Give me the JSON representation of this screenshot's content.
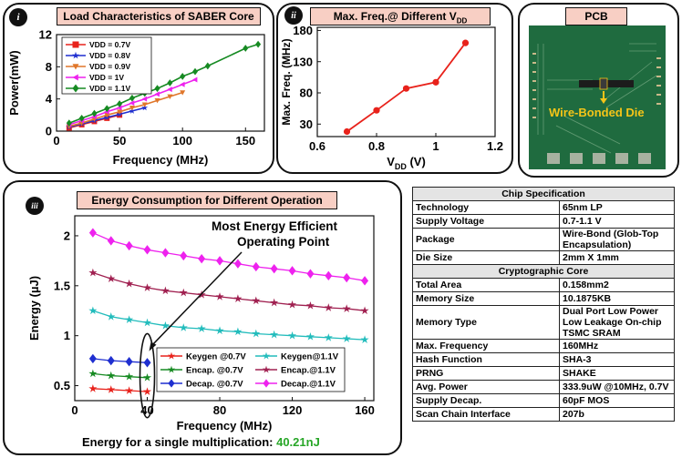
{
  "panel_i": {
    "badge": "i",
    "title": "Load Characteristics of SABER Core"
  },
  "panel_ii": {
    "badge": "ii",
    "title_main": "Max. Freq.@ Different V",
    "title_sub": "DD"
  },
  "panel_pcb": {
    "title": "PCB",
    "label": "Wire-Bonded Die"
  },
  "panel_iii": {
    "badge": "iii",
    "title": "Energy Consumption for Different Operation",
    "annotation_line1": "Most Energy Efficient",
    "annotation_line2": "Operating Point",
    "footer_label": "Energy for a single multiplication: ",
    "footer_value": "40.21nJ"
  },
  "colors": {
    "accent_green": "#27a627",
    "title_bg": "#f8cfc4",
    "pcb_green": "#1f6b3f",
    "label_yellow": "#f5c518"
  },
  "chart_data": [
    {
      "id": "load",
      "type": "line",
      "title": "Load Characteristics of SABER Core",
      "xlabel": "Frequency (MHz)",
      "ylabel": "Power(mW)",
      "xlim": [
        0,
        165
      ],
      "ylim": [
        0,
        12
      ],
      "xticks": [
        0,
        50,
        100,
        150
      ],
      "yticks": [
        0,
        4,
        8,
        12
      ],
      "legend_position": "top-left",
      "series": [
        {
          "name": "VDD = 0.7V",
          "color": "#e8221b",
          "marker": "square",
          "x": [
            10,
            20,
            30,
            40,
            50
          ],
          "y": [
            0.4,
            0.8,
            1.2,
            1.6,
            2.0
          ]
        },
        {
          "name": "VDD = 0.8V",
          "color": "#1f2fd0",
          "marker": "star",
          "x": [
            10,
            20,
            30,
            40,
            50,
            60,
            70
          ],
          "y": [
            0.5,
            0.9,
            1.3,
            1.7,
            2.1,
            2.5,
            2.9
          ]
        },
        {
          "name": "VDD = 0.9V",
          "color": "#e0762a",
          "marker": "triangle-down",
          "x": [
            10,
            20,
            30,
            40,
            50,
            60,
            70,
            80,
            90,
            100
          ],
          "y": [
            0.6,
            1.0,
            1.5,
            2.0,
            2.4,
            2.9,
            3.3,
            3.8,
            4.3,
            4.8
          ]
        },
        {
          "name": "VDD = 1V",
          "color": "#ee22ee",
          "marker": "triangle-left",
          "x": [
            10,
            20,
            30,
            40,
            50,
            60,
            70,
            80,
            90,
            100,
            110
          ],
          "y": [
            0.8,
            1.3,
            1.8,
            2.4,
            2.9,
            3.5,
            4.0,
            4.6,
            5.2,
            5.8,
            6.4
          ]
        },
        {
          "name": "VDD = 1.1V",
          "color": "#168a22",
          "marker": "diamond",
          "x": [
            10,
            20,
            30,
            40,
            50,
            60,
            70,
            80,
            90,
            100,
            110,
            120,
            150,
            160
          ],
          "y": [
            1.0,
            1.6,
            2.2,
            2.8,
            3.4,
            4.1,
            4.7,
            5.3,
            6.0,
            6.8,
            7.4,
            8.1,
            10.3,
            10.8
          ]
        }
      ]
    },
    {
      "id": "maxfreq",
      "type": "line",
      "title": "Max. Freq.@ Different VDD",
      "xlabel_main": "V",
      "xlabel_sub": "DD",
      "xlabel_unit": " (V)",
      "ylabel": "Max. Freq. (MHz)",
      "xlim": [
        0.6,
        1.2
      ],
      "ylim": [
        10,
        185
      ],
      "xticks": [
        0.6,
        0.8,
        1.0,
        1.2
      ],
      "xtick_labels": [
        "0.6",
        "0.8",
        "1",
        "1.2"
      ],
      "yticks": [
        30,
        80,
        130,
        180
      ],
      "series": [
        {
          "name": "Max. Freq.",
          "color": "#e8221b",
          "marker": "circle",
          "x": [
            0.7,
            0.8,
            0.9,
            1.0,
            1.1
          ],
          "y": [
            18,
            52,
            87,
            97,
            160
          ]
        }
      ]
    },
    {
      "id": "energy",
      "type": "line",
      "title": "Energy Consumption for Different Operation",
      "xlabel": "Frequency (MHz)",
      "ylabel": "Energy (µJ)",
      "xlim": [
        0,
        165
      ],
      "ylim": [
        0.35,
        2.2
      ],
      "xticks": [
        0,
        40,
        80,
        120,
        160
      ],
      "yticks": [
        0.5,
        1,
        1.5,
        2
      ],
      "ytick_labels": [
        "0.5",
        "1",
        "1.5",
        "2"
      ],
      "legend_position": "bottom-right",
      "series": [
        {
          "name": "Keygen @0.7V",
          "color": "#e8221b",
          "marker": "star",
          "x": [
            10,
            20,
            30,
            40
          ],
          "y": [
            0.47,
            0.46,
            0.45,
            0.44
          ]
        },
        {
          "name": "Encap. @0.7V",
          "color": "#168a22",
          "marker": "star",
          "x": [
            10,
            20,
            30,
            40
          ],
          "y": [
            0.62,
            0.6,
            0.59,
            0.58
          ]
        },
        {
          "name": "Decap. @0.7V",
          "color": "#1f2fd0",
          "marker": "diamond",
          "x": [
            10,
            20,
            30,
            40
          ],
          "y": [
            0.77,
            0.75,
            0.74,
            0.73
          ]
        },
        {
          "name": "Keygen@1.1V",
          "color": "#22bcbc",
          "marker": "star",
          "x": [
            10,
            20,
            30,
            40,
            50,
            60,
            70,
            80,
            90,
            100,
            110,
            120,
            130,
            140,
            150,
            160
          ],
          "y": [
            1.25,
            1.19,
            1.16,
            1.13,
            1.1,
            1.08,
            1.07,
            1.05,
            1.04,
            1.02,
            1.01,
            1.0,
            0.99,
            0.98,
            0.97,
            0.96
          ]
        },
        {
          "name": "Encap.@1.1V",
          "color": "#a02050",
          "marker": "star",
          "x": [
            10,
            20,
            30,
            40,
            50,
            60,
            70,
            80,
            90,
            100,
            110,
            120,
            130,
            140,
            150,
            160
          ],
          "y": [
            1.63,
            1.57,
            1.52,
            1.48,
            1.45,
            1.43,
            1.41,
            1.39,
            1.37,
            1.35,
            1.33,
            1.31,
            1.3,
            1.28,
            1.27,
            1.25
          ]
        },
        {
          "name": "Decap.@1.1V",
          "color": "#ee22ee",
          "marker": "diamond",
          "x": [
            10,
            20,
            30,
            40,
            50,
            60,
            70,
            80,
            90,
            100,
            110,
            120,
            130,
            140,
            150,
            160
          ],
          "y": [
            2.03,
            1.95,
            1.9,
            1.86,
            1.83,
            1.8,
            1.77,
            1.75,
            1.72,
            1.69,
            1.67,
            1.65,
            1.62,
            1.6,
            1.58,
            1.55
          ]
        }
      ]
    },
    {
      "id": "spec",
      "type": "table",
      "rows": [
        {
          "header": "Chip Specification"
        },
        {
          "key": "Technology",
          "value": "65nm LP"
        },
        {
          "key": "Supply Voltage",
          "value": "0.7-1.1 V"
        },
        {
          "key": "Package",
          "value": "Wire-Bond (Glob-Top Encapsulation)"
        },
        {
          "key": "Die Size",
          "value": "2mm X 1mm"
        },
        {
          "header": "Cryptographic Core"
        },
        {
          "key": "Total Area",
          "value": "0.158mm2"
        },
        {
          "key": "Memory Size",
          "value": "10.1875KB"
        },
        {
          "key": "Memory Type",
          "value": "Dual Port Low Power Low Leakage On-chip TSMC SRAM"
        },
        {
          "key": "Max. Frequency",
          "value": "160MHz"
        },
        {
          "key": "Hash Function",
          "value": "SHA-3"
        },
        {
          "key": "PRNG",
          "value": "SHAKE"
        },
        {
          "key": "Avg. Power",
          "value": "333.9uW @10MHz, 0.7V"
        },
        {
          "key": "Supply Decap.",
          "value": "60pF MOS"
        },
        {
          "key": "Scan Chain Interface",
          "value": "207b"
        }
      ]
    }
  ]
}
